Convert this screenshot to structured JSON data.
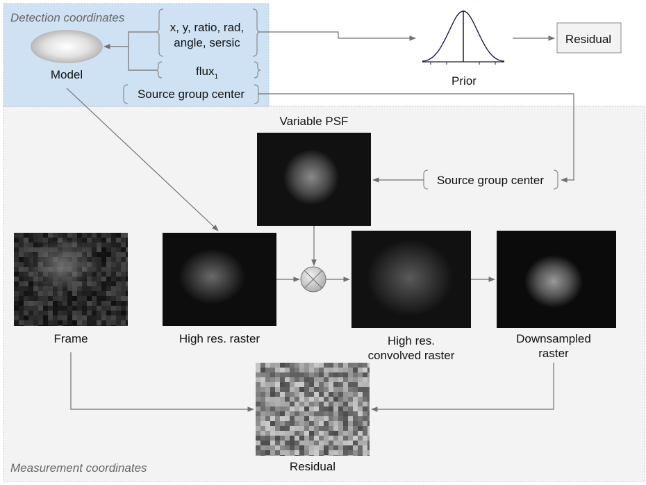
{
  "regions": {
    "detection": "Detection coordinates",
    "measurement": "Measurement coordinates"
  },
  "nodes": {
    "model": "Model",
    "params": [
      "x, y, ratio, rad,",
      "angle, sersic"
    ],
    "flux": "flux",
    "flux_sub": "1",
    "source_group_center_top": "Source group  center",
    "prior": "Prior",
    "residual_top": "Residual",
    "variable_psf": "Variable PSF",
    "source_group_center_psf": "Source group  center",
    "frame": "Frame",
    "high_res_raster": "High res. raster",
    "high_res_convolved": [
      "High res.",
      "convolved raster"
    ],
    "downsampled": [
      "Downsampled",
      "raster"
    ],
    "residual_bottom": "Residual"
  },
  "colors": {
    "detection_bg": "#cfe2f3",
    "measurement_bg": "#f3f3f3",
    "arrow": "#707070"
  }
}
